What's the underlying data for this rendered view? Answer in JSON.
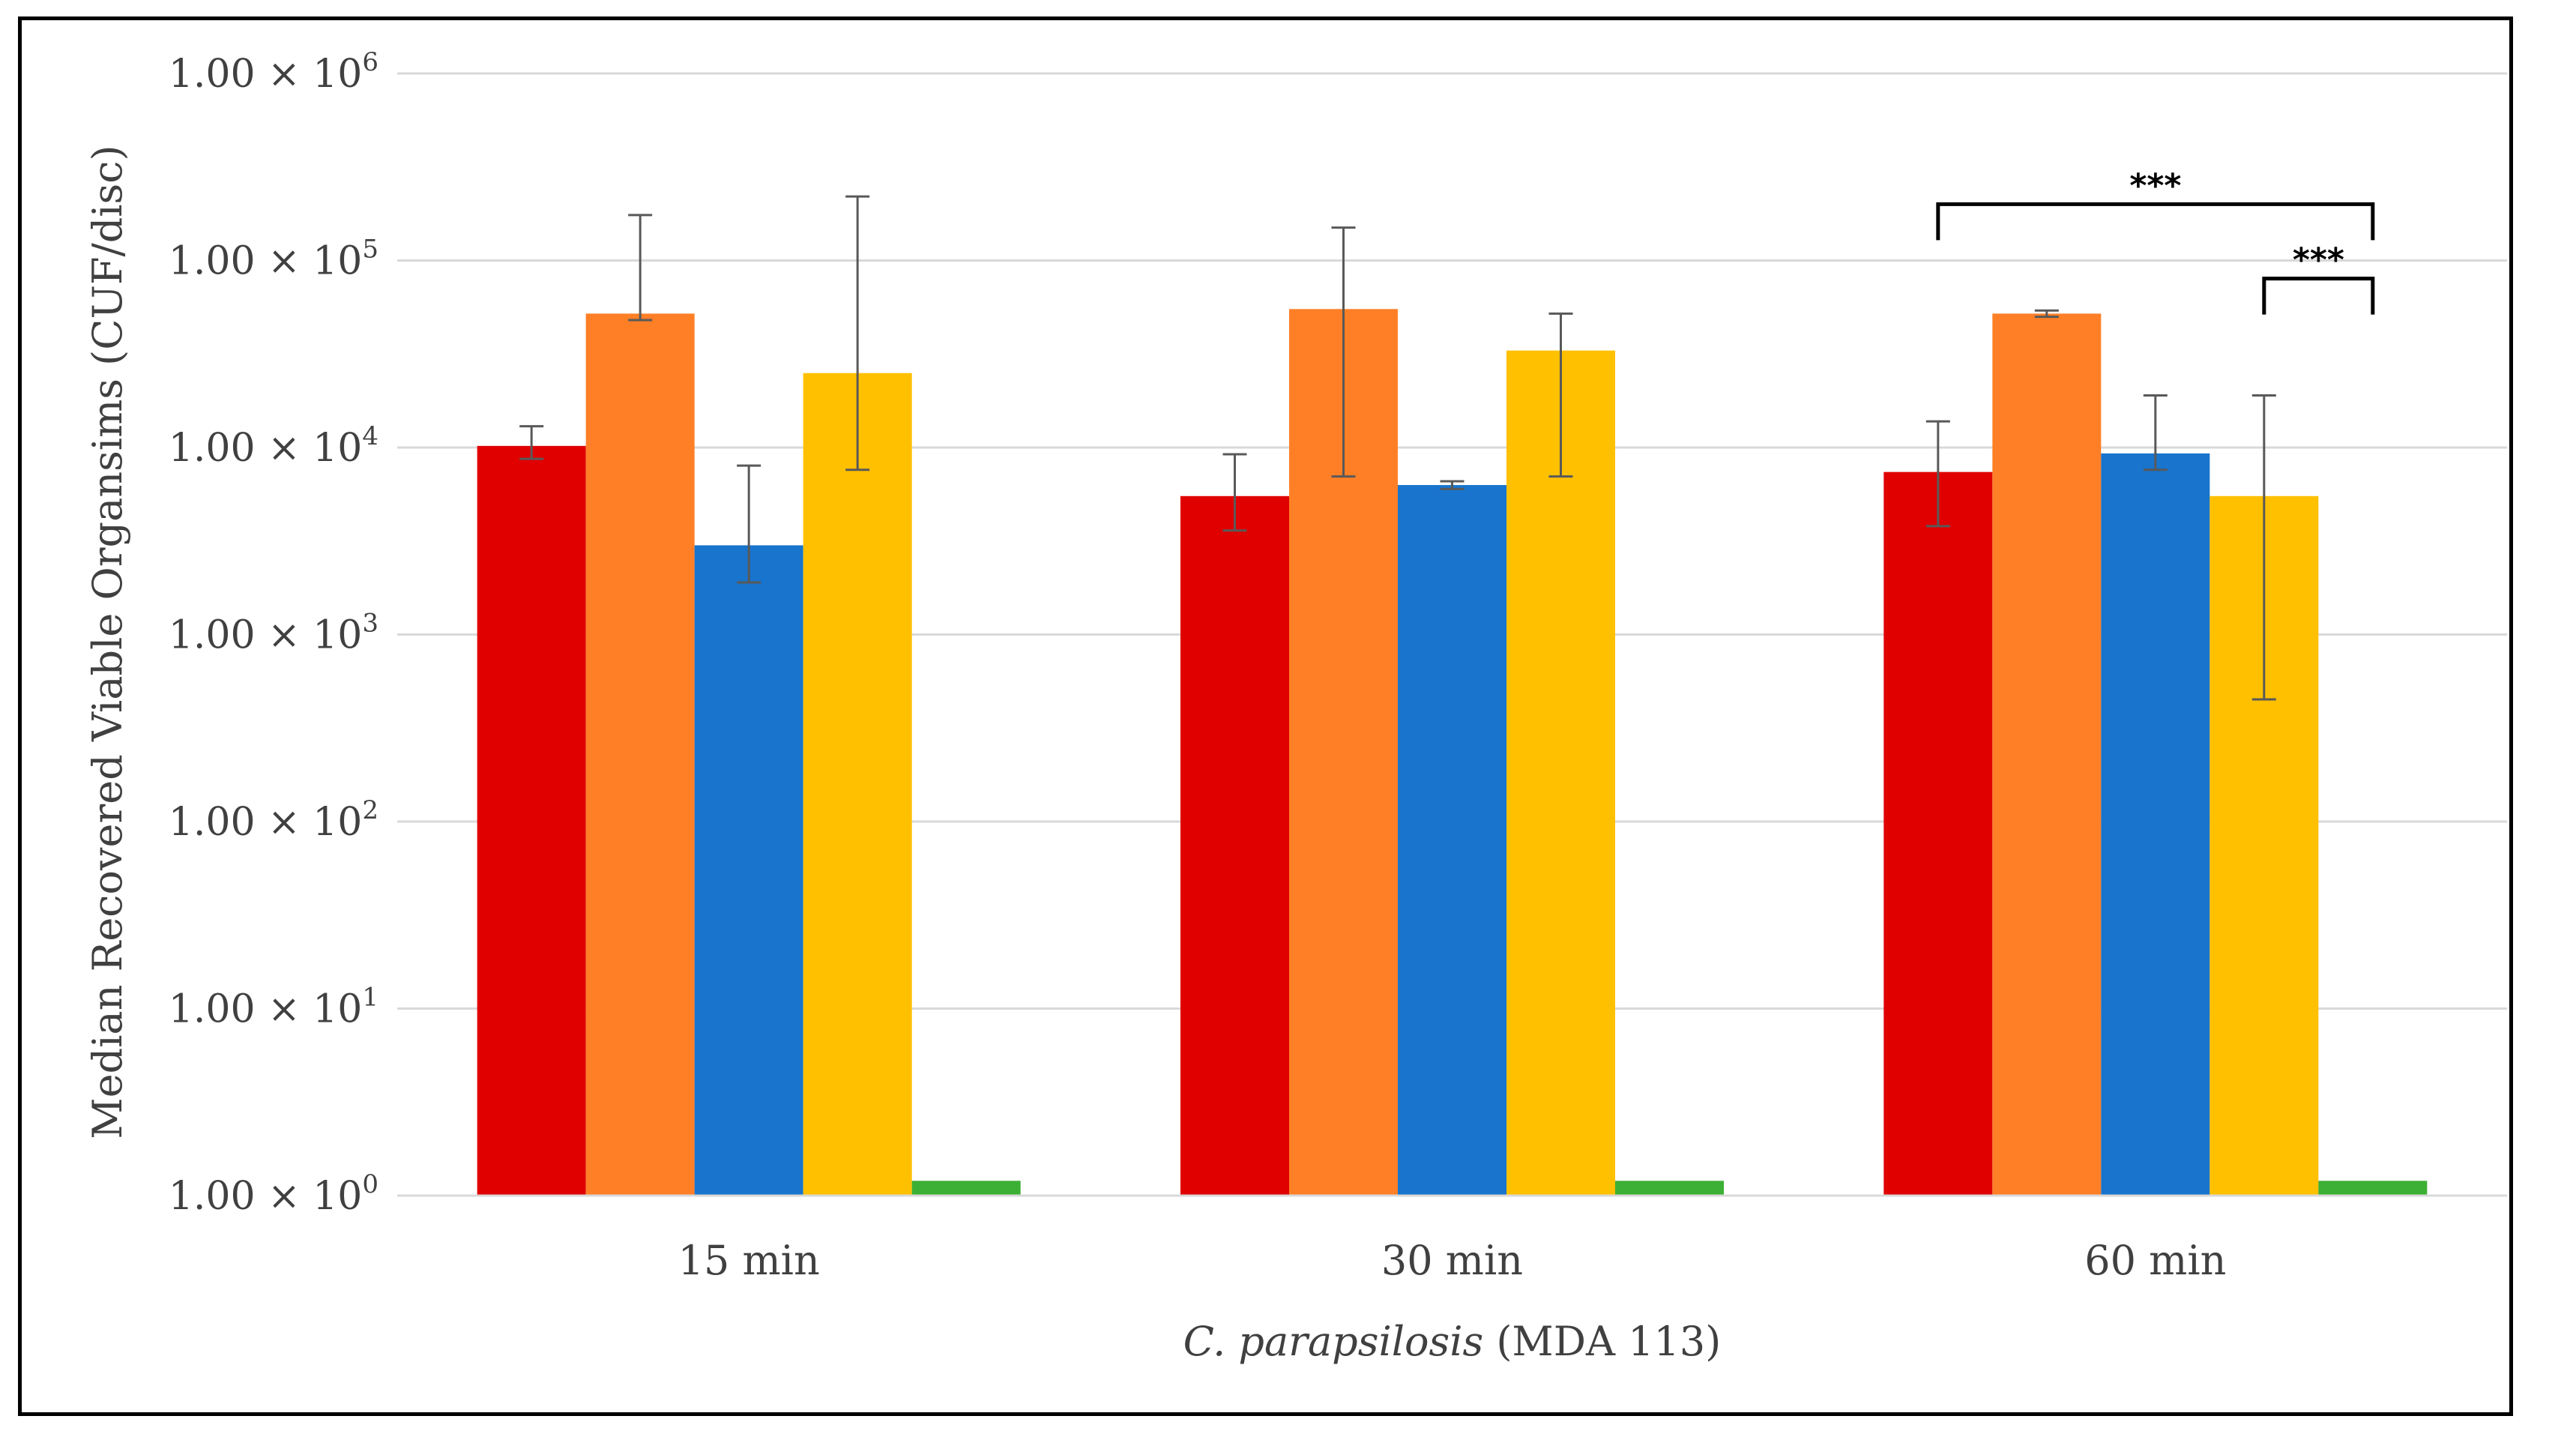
{
  "chart_data": {
    "type": "bar",
    "y_scale": "log",
    "ylim": [
      1,
      1000000
    ],
    "grid": true,
    "legend": "none",
    "ylabel": "Median Recovered Viable Organsims (CUF/disc)",
    "xlabel_italic": "C. parapsilosis",
    "xlabel_rest": " (MDA 113)",
    "categories": [
      "15 min",
      "30 min",
      "60 min"
    ],
    "y_ticks": [
      {
        "value": 1,
        "mantissa": "1.00",
        "times": "×",
        "base": "10",
        "exp": "0"
      },
      {
        "value": 10,
        "mantissa": "1.00",
        "times": "×",
        "base": "10",
        "exp": "1"
      },
      {
        "value": 100,
        "mantissa": "1.00",
        "times": "×",
        "base": "10",
        "exp": "2"
      },
      {
        "value": 1000,
        "mantissa": "1.00",
        "times": "×",
        "base": "10",
        "exp": "3"
      },
      {
        "value": 10000,
        "mantissa": "1.00",
        "times": "×",
        "base": "10",
        "exp": "4"
      },
      {
        "value": 100000,
        "mantissa": "1.00",
        "times": "×",
        "base": "10",
        "exp": "5"
      },
      {
        "value": 1000000,
        "mantissa": "1.00",
        "times": "×",
        "base": "10",
        "exp": "6"
      }
    ],
    "series": [
      {
        "color": "#e00000",
        "values": [
          10200,
          5500,
          7400
        ],
        "err_low": [
          8700,
          3600,
          3800
        ],
        "err_high": [
          13000,
          9200,
          13800
        ]
      },
      {
        "color": "#ff7f27",
        "values": [
          52000,
          55000,
          52000
        ],
        "err_low": [
          48000,
          7000,
          50000
        ],
        "err_high": [
          175000,
          150000,
          54000
        ]
      },
      {
        "color": "#1874cd",
        "values": [
          3000,
          6300,
          9300
        ],
        "err_low": [
          1900,
          6000,
          7600
        ],
        "err_high": [
          8000,
          6600,
          19000
        ]
      },
      {
        "color": "#ffc000",
        "values": [
          25000,
          33000,
          5500
        ],
        "err_low": [
          7600,
          7000,
          450
        ],
        "err_high": [
          220000,
          52000,
          19000
        ]
      },
      {
        "color": "#3cb034",
        "values": [
          1.2,
          1.2,
          1.2
        ],
        "err_low": [
          1.2,
          1.2,
          1.2
        ],
        "err_high": [
          1.2,
          1.2,
          1.2
        ]
      }
    ],
    "annotations": [
      {
        "label": "***",
        "category": 2,
        "from_series": 0,
        "to_series": 4,
        "level": 200000
      },
      {
        "label": "***",
        "category": 2,
        "from_series": 3,
        "to_series": 4,
        "level": 80000
      }
    ]
  }
}
